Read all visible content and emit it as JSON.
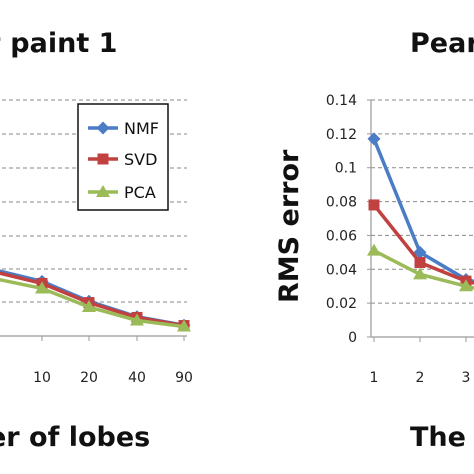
{
  "chart_data": [
    {
      "type": "line",
      "title": "t paint 1",
      "xlabel": "er of lobes",
      "ylabel": "",
      "categories": [
        "10",
        "20",
        "40",
        "90"
      ],
      "grid": true,
      "legend": "top-right",
      "series": [
        {
          "name": "NMF",
          "values": [
            0.0162,
            0.0103,
            0.0057,
            0.0032
          ]
        },
        {
          "name": "SVD",
          "values": [
            0.0156,
            0.0099,
            0.0055,
            0.0031
          ]
        },
        {
          "name": "PCA",
          "values": [
            0.0141,
            0.0086,
            0.0046,
            0.0028
          ]
        }
      ]
    },
    {
      "type": "line",
      "title": "Pear",
      "xlabel": "The",
      "ylabel": "RMS error",
      "categories": [
        "1",
        "2",
        "3"
      ],
      "ylim": [
        0,
        0.14
      ],
      "yticks": [
        "0",
        "0.02",
        "0.04",
        "0.06",
        "0.08",
        "0.1",
        "0.12",
        "0.14"
      ],
      "grid": true,
      "series": [
        {
          "name": "NMF",
          "values": [
            0.117,
            0.05,
            0.034
          ]
        },
        {
          "name": "SVD",
          "values": [
            0.078,
            0.044,
            0.033
          ]
        },
        {
          "name": "PCA",
          "values": [
            0.051,
            0.037,
            0.03
          ]
        }
      ]
    }
  ],
  "colors": {
    "NMF": "#4a7dc6",
    "SVD": "#c0413f",
    "PCA": "#9bbb59",
    "grid": "#8a8a8a",
    "axis": "#9a9a9a"
  }
}
